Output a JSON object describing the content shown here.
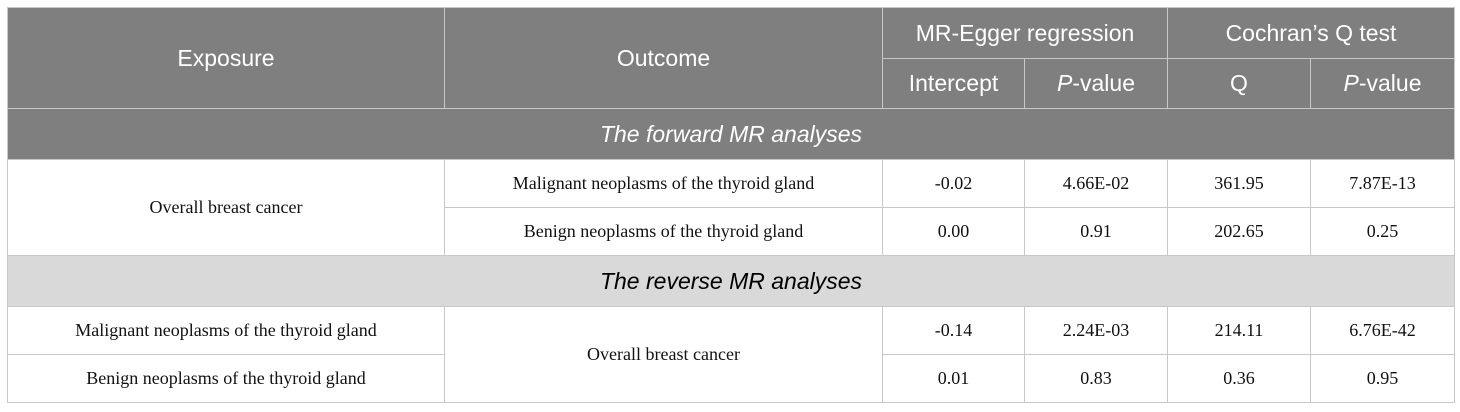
{
  "header": {
    "exposure": "Exposure",
    "outcome": "Outcome",
    "egger_group": "MR-Egger regression",
    "cochran_group": "Cochran’s Q test",
    "intercept": "Intercept",
    "p_italic": "P",
    "p_suffix": "-value",
    "q": "Q"
  },
  "sections": [
    {
      "title": "The forward MR analyses",
      "exposure_merged": "Overall breast cancer",
      "rows": [
        {
          "outcome": "Malignant neoplasms of the thyroid gland",
          "intercept": "-0.02",
          "egger_p": "4.66E-02",
          "q": "361.95",
          "q_p": "7.87E-13"
        },
        {
          "outcome": "Benign neoplasms of the thyroid gland",
          "intercept": "0.00",
          "egger_p": "0.91",
          "q": "202.65",
          "q_p": "0.25"
        }
      ]
    },
    {
      "title": "The reverse MR analyses",
      "outcome_merged": "Overall breast cancer",
      "rows": [
        {
          "exposure": "Malignant neoplasms of the thyroid gland",
          "intercept": "-0.14",
          "egger_p": "2.24E-03",
          "q": "214.11",
          "q_p": "6.76E-42"
        },
        {
          "exposure": "Benign neoplasms of the thyroid gland",
          "intercept": "0.01",
          "egger_p": "0.83",
          "q": "0.36",
          "q_p": "0.95"
        }
      ]
    }
  ]
}
